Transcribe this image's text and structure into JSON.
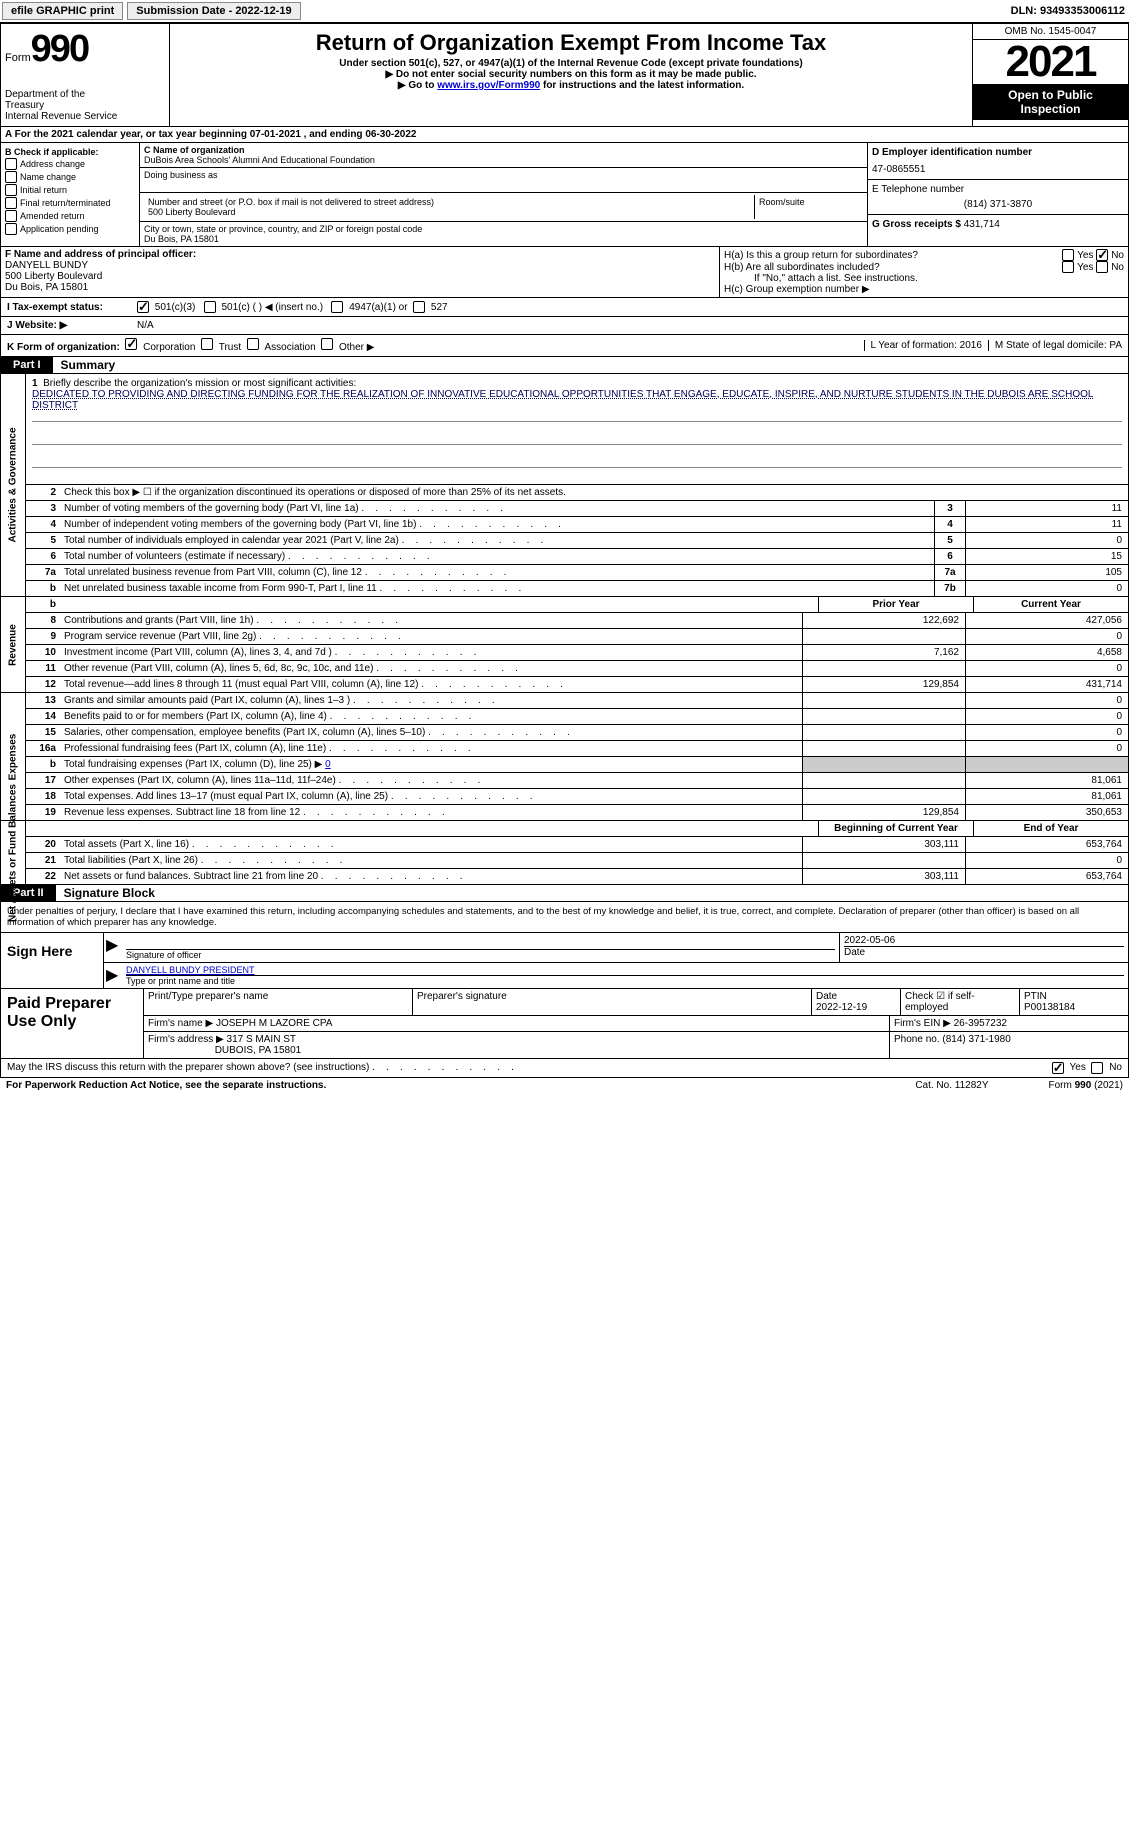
{
  "topbar": {
    "efile_label": "efile GRAPHIC print",
    "submission_label": "Submission Date - 2022-12-19",
    "dln_label": "DLN: 93493353006112"
  },
  "header": {
    "form_word": "Form",
    "form_number": "990",
    "main_title": "Return of Organization Exempt From Income Tax",
    "subtitle": "Under section 501(c), 527, or 4947(a)(1) of the Internal Revenue Code (except private foundations)",
    "note1": "▶ Do not enter social security numbers on this form as it may be made public.",
    "note2_pre": "▶ Go to ",
    "note2_link": "www.irs.gov/Form990",
    "note2_post": " for instructions and the latest information.",
    "dept": "Department of the Treasury\nInternal Revenue Service",
    "omb": "OMB No. 1545-0047",
    "year": "2021",
    "open": "Open to Public Inspection"
  },
  "row_a": "A For the 2021 calendar year, or tax year beginning 07-01-2021   , and ending 06-30-2022",
  "section_b": {
    "b_label": "B Check if applicable:",
    "checks": [
      "Address change",
      "Name change",
      "Initial return",
      "Final return/terminated",
      "Amended return",
      "Application pending"
    ],
    "c_name_label": "C Name of organization",
    "org_name": "DuBois Area Schools' Alumni And Educational Foundation",
    "dba_label": "Doing business as",
    "addr_label": "Number and street (or P.O. box if mail is not delivered to street address)",
    "addr": "500 Liberty Boulevard",
    "room_label": "Room/suite",
    "city_label": "City or town, state or province, country, and ZIP or foreign postal code",
    "city": "Du Bois, PA   15801",
    "d_label": "D Employer identification number",
    "ein": "47-0865551",
    "e_label": "E Telephone number",
    "phone": "(814) 371-3870",
    "g_label": "G Gross receipts $",
    "gross": "431,714"
  },
  "section_f": {
    "f_label": "F Name and address of principal officer:",
    "officer_name": "DANYELL BUNDY",
    "officer_addr1": "500 Liberty Boulevard",
    "officer_addr2": "Du Bois, PA   15801",
    "ha_label": "H(a)  Is this a group return for subordinates?",
    "hb_label": "H(b)  Are all subordinates included?",
    "hb_note": "If \"No,\" attach a list. See instructions.",
    "hc_label": "H(c)  Group exemption number ▶",
    "yes": "Yes",
    "no": "No"
  },
  "tax_row": {
    "i_label": "I   Tax-exempt status:",
    "opt1": "501(c)(3)",
    "opt2": "501(c) (   ) ◀ (insert no.)",
    "opt3": "4947(a)(1) or",
    "opt4": "527"
  },
  "web_row": {
    "j_label": "J   Website: ▶",
    "website": "N/A"
  },
  "k_row": {
    "k_label": "K Form of organization:",
    "opts": [
      "Corporation",
      "Trust",
      "Association",
      "Other ▶"
    ],
    "l_label": "L Year of formation: 2016",
    "m_label": "M State of legal domicile: PA"
  },
  "part1": {
    "tab": "Part I",
    "title": "Summary"
  },
  "mission": {
    "num": "1",
    "label": "Briefly describe the organization's mission or most significant activities:",
    "text": "DEDICATED TO PROVIDING AND DIRECTING FUNDING FOR THE REALIZATION OF INNOVATIVE EDUCATIONAL OPPORTUNITIES THAT ENGAGE, EDUCATE, INSPIRE, AND NURTURE STUDENTS IN THE DUBOIS ARE SCHOOL DISTRICT"
  },
  "line2": {
    "num": "2",
    "label": "Check this box ▶ ☐ if the organization discontinued its operations or disposed of more than 25% of its net assets."
  },
  "gov_lines": [
    {
      "num": "3",
      "label": "Number of voting members of the governing body (Part VI, line 1a)",
      "box": "3",
      "val": "11"
    },
    {
      "num": "4",
      "label": "Number of independent voting members of the governing body (Part VI, line 1b)",
      "box": "4",
      "val": "11"
    },
    {
      "num": "5",
      "label": "Total number of individuals employed in calendar year 2021 (Part V, line 2a)",
      "box": "5",
      "val": "0"
    },
    {
      "num": "6",
      "label": "Total number of volunteers (estimate if necessary)",
      "box": "6",
      "val": "15"
    },
    {
      "num": "7a",
      "label": "Total unrelated business revenue from Part VIII, column (C), line 12",
      "box": "7a",
      "val": "105"
    },
    {
      "num": "b",
      "label": "Net unrelated business taxable income from Form 990-T, Part I, line 11",
      "box": "7b",
      "val": "0"
    }
  ],
  "hdr_prior": "Prior Year",
  "hdr_current": "Current Year",
  "revenue_lines": [
    {
      "num": "8",
      "label": "Contributions and grants (Part VIII, line 1h)",
      "prior": "122,692",
      "curr": "427,056"
    },
    {
      "num": "9",
      "label": "Program service revenue (Part VIII, line 2g)",
      "prior": "",
      "curr": "0"
    },
    {
      "num": "10",
      "label": "Investment income (Part VIII, column (A), lines 3, 4, and 7d )",
      "prior": "7,162",
      "curr": "4,658"
    },
    {
      "num": "11",
      "label": "Other revenue (Part VIII, column (A), lines 5, 6d, 8c, 9c, 10c, and 11e)",
      "prior": "",
      "curr": "0"
    },
    {
      "num": "12",
      "label": "Total revenue—add lines 8 through 11 (must equal Part VIII, column (A), line 12)",
      "prior": "129,854",
      "curr": "431,714"
    }
  ],
  "expense_lines": [
    {
      "num": "13",
      "label": "Grants and similar amounts paid (Part IX, column (A), lines 1–3 )",
      "prior": "",
      "curr": "0"
    },
    {
      "num": "14",
      "label": "Benefits paid to or for members (Part IX, column (A), line 4)",
      "prior": "",
      "curr": "0"
    },
    {
      "num": "15",
      "label": "Salaries, other compensation, employee benefits (Part IX, column (A), lines 5–10)",
      "prior": "",
      "curr": "0"
    },
    {
      "num": "16a",
      "label": "Professional fundraising fees (Part IX, column (A), line 11e)",
      "prior": "",
      "curr": "0"
    },
    {
      "num": "b",
      "label_html": "Total fundraising expenses (Part IX, column (D), line 25) ▶",
      "label_suffix": "0",
      "shaded": true
    },
    {
      "num": "17",
      "label": "Other expenses (Part IX, column (A), lines 11a–11d, 11f–24e)",
      "prior": "",
      "curr": "81,061"
    },
    {
      "num": "18",
      "label": "Total expenses. Add lines 13–17 (must equal Part IX, column (A), line 25)",
      "prior": "",
      "curr": "81,061"
    },
    {
      "num": "19",
      "label": "Revenue less expenses. Subtract line 18 from line 12",
      "prior": "129,854",
      "curr": "350,653"
    }
  ],
  "hdr_begin": "Beginning of Current Year",
  "hdr_end": "End of Year",
  "net_lines": [
    {
      "num": "20",
      "label": "Total assets (Part X, line 16)",
      "prior": "303,111",
      "curr": "653,764"
    },
    {
      "num": "21",
      "label": "Total liabilities (Part X, line 26)",
      "prior": "",
      "curr": "0"
    },
    {
      "num": "22",
      "label": "Net assets or fund balances. Subtract line 21 from line 20",
      "prior": "303,111",
      "curr": "653,764"
    }
  ],
  "part2": {
    "tab": "Part II",
    "title": "Signature Block"
  },
  "penalty_text": "Under penalties of perjury, I declare that I have examined this return, including accompanying schedules and statements, and to the best of my knowledge and belief, it is true, correct, and complete. Declaration of preparer (other than officer) is based on all information of which preparer has any knowledge.",
  "sign": {
    "here": "Sign Here",
    "sig_label": "Signature of officer",
    "date_label": "Date",
    "date": "2022-05-06",
    "name": "DANYELL BUNDY  PRESIDENT",
    "name_label": "Type or print name and title"
  },
  "prep": {
    "left": "Paid Preparer Use Only",
    "r1c1_label": "Print/Type preparer's name",
    "r1c2_label": "Preparer's signature",
    "r1c3_label": "Date",
    "r1c3_val": "2022-12-19",
    "r1c4_label": "Check ☑ if self-employed",
    "r1c5_label": "PTIN",
    "r1c5_val": "P00138184",
    "r2c1_label": "Firm's name    ▶",
    "r2c1_val": "JOSEPH M LAZORE CPA",
    "r2c2_label": "Firm's EIN ▶",
    "r2c2_val": "26-3957232",
    "r3c1_label": "Firm's address ▶",
    "r3c1_val": "317 S MAIN ST",
    "r3c1_val2": "DUBOIS, PA  15801",
    "r3c2_label": "Phone no.",
    "r3c2_val": "(814) 371-1980"
  },
  "discuss": {
    "q": "May the IRS discuss this return with the preparer shown above? (see instructions)",
    "yes": "Yes",
    "no": "No"
  },
  "footer": {
    "left": "For Paperwork Reduction Act Notice, see the separate instructions.",
    "mid": "Cat. No. 11282Y",
    "right": "Form 990 (2021)"
  },
  "sidelabels": {
    "gov": "Activities & Governance",
    "rev": "Revenue",
    "exp": "Expenses",
    "net": "Net Assets or Fund Balances"
  }
}
